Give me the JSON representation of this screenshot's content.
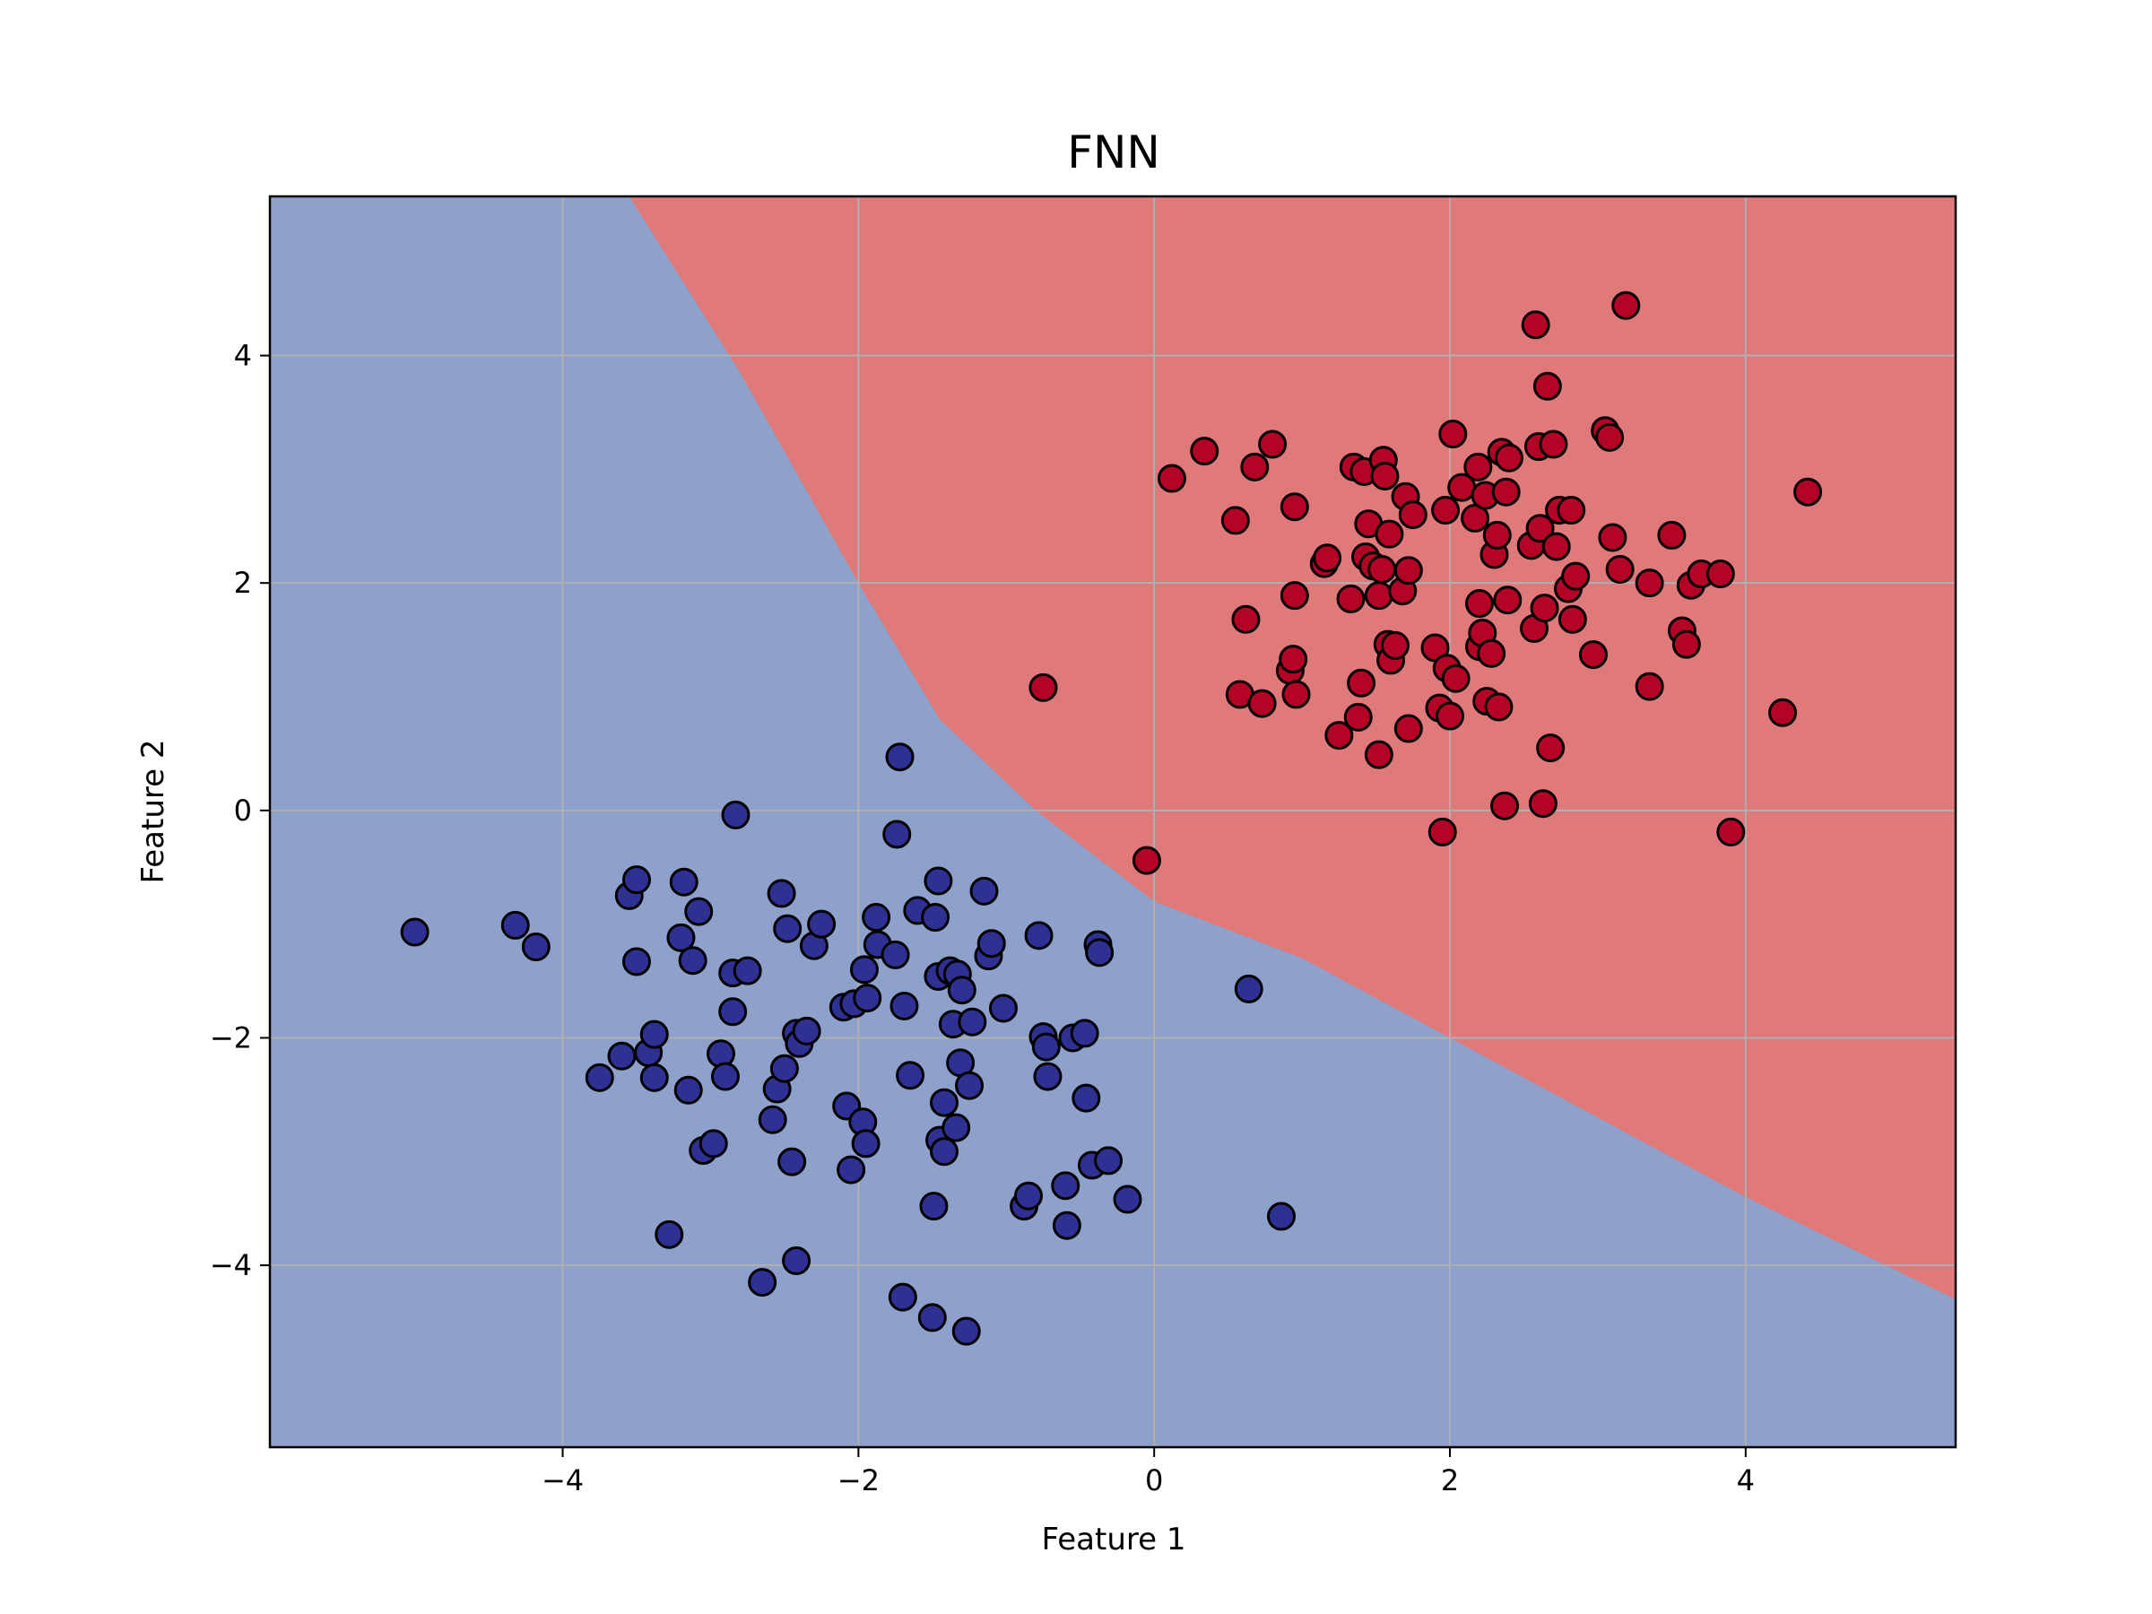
{
  "chart_data": {
    "type": "scatter",
    "title": "FNN",
    "xlabel": "Feature 1",
    "ylabel": "Feature 2",
    "xlim": [
      -5.98,
      5.42
    ],
    "ylim": [
      -5.6,
      5.4
    ],
    "xticks": [
      -4,
      -2,
      0,
      2,
      4
    ],
    "yticks": [
      -4,
      -2,
      0,
      2,
      4
    ],
    "xtick_labels": [
      "−4",
      "−2",
      "0",
      "2",
      "4"
    ],
    "ytick_labels": [
      "−4",
      "−2",
      "0",
      "2",
      "4"
    ],
    "grid": true,
    "regions": {
      "class_0_color": "#8da1ca",
      "class_1_color": "#df797a",
      "decision_boundary": [
        [
          -3.55,
          5.4
        ],
        [
          -2.8,
          3.85
        ],
        [
          -2.0,
          2.0
        ],
        [
          -1.45,
          0.8
        ],
        [
          -0.8,
          0.0
        ],
        [
          0.0,
          -0.8
        ],
        [
          1.0,
          -1.3
        ],
        [
          2.0,
          -2.0
        ],
        [
          3.0,
          -2.7
        ],
        [
          4.0,
          -3.4
        ],
        [
          5.42,
          -4.3
        ]
      ]
    },
    "series": [
      {
        "color": "#2e3192",
        "points": [
          [
            -5.0,
            -1.07
          ],
          [
            -4.32,
            -1.01
          ],
          [
            -4.18,
            -1.2
          ],
          [
            -3.75,
            -2.35
          ],
          [
            -3.6,
            -2.16
          ],
          [
            -3.55,
            -0.75
          ],
          [
            -3.5,
            -0.61
          ],
          [
            -3.5,
            -1.33
          ],
          [
            -3.42,
            -2.13
          ],
          [
            -3.38,
            -1.97
          ],
          [
            -3.38,
            -2.35
          ],
          [
            -3.28,
            -3.73
          ],
          [
            -3.2,
            -1.12
          ],
          [
            -3.18,
            -0.63
          ],
          [
            -3.15,
            -2.46
          ],
          [
            -3.12,
            -1.32
          ],
          [
            -3.08,
            -0.89
          ],
          [
            -3.05,
            -2.99
          ],
          [
            -2.98,
            -2.93
          ],
          [
            -2.93,
            -2.14
          ],
          [
            -2.9,
            -2.34
          ],
          [
            -2.85,
            -1.43
          ],
          [
            -2.85,
            -1.77
          ],
          [
            -2.83,
            -0.04
          ],
          [
            -2.75,
            -1.41
          ],
          [
            -2.65,
            -4.15
          ],
          [
            -2.58,
            -2.72
          ],
          [
            -2.55,
            -2.45
          ],
          [
            -2.52,
            -0.73
          ],
          [
            -2.5,
            -2.27
          ],
          [
            -2.48,
            -1.04
          ],
          [
            -2.45,
            -3.09
          ],
          [
            -2.42,
            -1.96
          ],
          [
            -2.42,
            -3.96
          ],
          [
            -2.4,
            -2.05
          ],
          [
            -2.35,
            -1.94
          ],
          [
            -2.3,
            -1.19
          ],
          [
            -2.25,
            -1.0
          ],
          [
            -2.1,
            -1.73
          ],
          [
            -2.08,
            -2.6
          ],
          [
            -2.05,
            -3.16
          ],
          [
            -2.03,
            -1.7
          ],
          [
            -1.97,
            -2.74
          ],
          [
            -1.96,
            -1.4
          ],
          [
            -1.95,
            -2.93
          ],
          [
            -1.94,
            -1.65
          ],
          [
            -1.88,
            -0.94
          ],
          [
            -1.87,
            -1.18
          ],
          [
            -1.75,
            -1.27
          ],
          [
            -1.74,
            -0.21
          ],
          [
            -1.72,
            0.47
          ],
          [
            -1.7,
            -4.28
          ],
          [
            -1.69,
            -1.72
          ],
          [
            -1.65,
            -2.33
          ],
          [
            -1.6,
            -0.88
          ],
          [
            -1.5,
            -4.46
          ],
          [
            -1.49,
            -3.48
          ],
          [
            -1.48,
            -0.94
          ],
          [
            -1.46,
            -0.62
          ],
          [
            -1.46,
            -1.46
          ],
          [
            -1.45,
            -2.9
          ],
          [
            -1.42,
            -3.0
          ],
          [
            -1.42,
            -2.57
          ],
          [
            -1.38,
            -1.41
          ],
          [
            -1.36,
            -1.88
          ],
          [
            -1.34,
            -2.79
          ],
          [
            -1.33,
            -1.44
          ],
          [
            -1.31,
            -2.22
          ],
          [
            -1.3,
            -1.58
          ],
          [
            -1.27,
            -4.58
          ],
          [
            -1.25,
            -2.42
          ],
          [
            -1.23,
            -1.86
          ],
          [
            -1.15,
            -0.71
          ],
          [
            -1.12,
            -1.28
          ],
          [
            -1.1,
            -1.17
          ],
          [
            -1.02,
            -1.74
          ],
          [
            -0.88,
            -3.48
          ],
          [
            -0.85,
            -3.39
          ],
          [
            -0.78,
            -1.1
          ],
          [
            -0.75,
            -1.99
          ],
          [
            -0.73,
            -2.08
          ],
          [
            -0.72,
            -2.34
          ],
          [
            -0.6,
            -3.3
          ],
          [
            -0.59,
            -3.65
          ],
          [
            -0.55,
            -2.0
          ],
          [
            -0.47,
            -1.96
          ],
          [
            -0.46,
            -2.53
          ],
          [
            -0.42,
            -3.12
          ],
          [
            -0.38,
            -1.18
          ],
          [
            -0.37,
            -1.25
          ],
          [
            -0.31,
            -3.08
          ],
          [
            -0.18,
            -3.42
          ],
          [
            0.64,
            -1.57
          ],
          [
            0.86,
            -3.57
          ]
        ]
      },
      {
        "color": "#b40426",
        "points": [
          [
            -0.75,
            1.08
          ],
          [
            -0.05,
            -0.44
          ],
          [
            0.12,
            2.92
          ],
          [
            0.34,
            3.16
          ],
          [
            0.55,
            2.55
          ],
          [
            0.58,
            1.02
          ],
          [
            0.62,
            1.68
          ],
          [
            0.68,
            3.02
          ],
          [
            0.73,
            0.94
          ],
          [
            0.8,
            3.22
          ],
          [
            0.92,
            1.23
          ],
          [
            0.94,
            1.33
          ],
          [
            0.95,
            1.89
          ],
          [
            0.95,
            2.67
          ],
          [
            0.96,
            1.02
          ],
          [
            1.15,
            2.17
          ],
          [
            1.17,
            2.22
          ],
          [
            1.25,
            0.66
          ],
          [
            1.33,
            1.86
          ],
          [
            1.35,
            3.02
          ],
          [
            1.38,
            0.82
          ],
          [
            1.4,
            1.12
          ],
          [
            1.42,
            2.98
          ],
          [
            1.43,
            2.23
          ],
          [
            1.45,
            2.52
          ],
          [
            1.48,
            2.15
          ],
          [
            1.52,
            1.89
          ],
          [
            1.52,
            0.49
          ],
          [
            1.54,
            2.12
          ],
          [
            1.55,
            3.08
          ],
          [
            1.56,
            2.94
          ],
          [
            1.58,
            1.46
          ],
          [
            1.59,
            2.43
          ],
          [
            1.6,
            1.32
          ],
          [
            1.63,
            1.45
          ],
          [
            1.68,
            1.93
          ],
          [
            1.7,
            2.76
          ],
          [
            1.72,
            2.11
          ],
          [
            1.72,
            0.72
          ],
          [
            1.75,
            2.6
          ],
          [
            1.9,
            1.43
          ],
          [
            1.93,
            0.9
          ],
          [
            1.95,
            -0.19
          ],
          [
            1.97,
            2.64
          ],
          [
            1.98,
            1.25
          ],
          [
            2.0,
            0.83
          ],
          [
            2.02,
            3.31
          ],
          [
            2.04,
            1.16
          ],
          [
            2.08,
            2.84
          ],
          [
            2.17,
            2.57
          ],
          [
            2.19,
            3.02
          ],
          [
            2.2,
            1.82
          ],
          [
            2.2,
            1.44
          ],
          [
            2.22,
            1.56
          ],
          [
            2.24,
            2.77
          ],
          [
            2.25,
            0.96
          ],
          [
            2.28,
            1.38
          ],
          [
            2.3,
            2.25
          ],
          [
            2.32,
            2.42
          ],
          [
            2.33,
            0.91
          ],
          [
            2.35,
            3.15
          ],
          [
            2.37,
            0.04
          ],
          [
            2.38,
            2.8
          ],
          [
            2.39,
            1.85
          ],
          [
            2.4,
            3.1
          ],
          [
            2.55,
            2.33
          ],
          [
            2.57,
            1.6
          ],
          [
            2.58,
            4.27
          ],
          [
            2.6,
            3.2
          ],
          [
            2.61,
            2.48
          ],
          [
            2.63,
            0.06
          ],
          [
            2.64,
            1.78
          ],
          [
            2.66,
            3.73
          ],
          [
            2.68,
            0.55
          ],
          [
            2.7,
            3.22
          ],
          [
            2.72,
            2.32
          ],
          [
            2.74,
            2.64
          ],
          [
            2.8,
            1.95
          ],
          [
            2.82,
            2.64
          ],
          [
            2.83,
            1.68
          ],
          [
            2.85,
            2.06
          ],
          [
            2.97,
            1.37
          ],
          [
            3.05,
            3.34
          ],
          [
            3.08,
            3.28
          ],
          [
            3.1,
            2.4
          ],
          [
            3.15,
            2.12
          ],
          [
            3.19,
            4.44
          ],
          [
            3.35,
            2.0
          ],
          [
            3.35,
            1.09
          ],
          [
            3.5,
            2.42
          ],
          [
            3.57,
            1.58
          ],
          [
            3.6,
            1.46
          ],
          [
            3.63,
            1.98
          ],
          [
            3.7,
            2.08
          ],
          [
            3.83,
            2.08
          ],
          [
            3.9,
            -0.19
          ],
          [
            4.25,
            0.86
          ],
          [
            4.42,
            2.8
          ]
        ]
      }
    ]
  }
}
